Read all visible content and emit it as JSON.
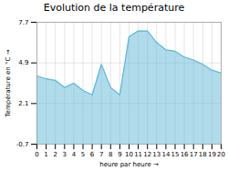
{
  "chart_data": {
    "type": "area",
    "title": "Evolution de la température",
    "x_label": "heure par heure",
    "y_label": "Température en °C",
    "x": [
      0,
      1,
      2,
      3,
      4,
      5,
      6,
      7,
      8,
      9,
      10,
      11,
      12,
      13,
      14,
      15,
      16,
      17,
      18,
      19,
      20
    ],
    "values": [
      4.0,
      3.8,
      3.7,
      3.2,
      3.5,
      3.0,
      2.7,
      4.8,
      3.2,
      2.7,
      6.7,
      7.1,
      7.1,
      6.3,
      5.8,
      5.7,
      5.3,
      5.1,
      4.8,
      4.4,
      4.2
    ],
    "color": "#60b8d8",
    "xlim": [
      0,
      20
    ],
    "xticks": [
      0,
      1,
      2,
      3,
      4,
      5,
      6,
      7,
      8,
      9,
      10,
      11,
      12,
      13,
      14,
      15,
      16,
      17,
      18,
      19,
      20
    ],
    "ylim": [
      -0.7,
      7.7
    ],
    "yticks": [
      -0.7,
      2.1,
      4.9,
      7.7
    ],
    "grid": true
  }
}
